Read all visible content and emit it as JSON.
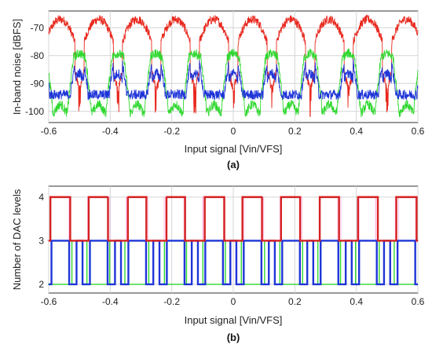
{
  "chart_data": [
    {
      "type": "line",
      "panel_label": "(a)",
      "xlabel": "Input signal [Vin/VFS]",
      "ylabel": "In-band noise [dBFS]",
      "xlim": [
        -0.6,
        0.6
      ],
      "ylim": [
        -104,
        -64
      ],
      "xticks": [
        "-0.6",
        "-0.4",
        "-0.2",
        "0",
        "0.2",
        "0.4",
        "0.6"
      ],
      "yticks": [
        "-70",
        "-80",
        "-90",
        "-100"
      ],
      "grid": true,
      "period": 0.125,
      "series": [
        {
          "color": "#e8281e",
          "peak_x": [
            -0.5625,
            -0.4375,
            -0.3125,
            -0.1875,
            -0.0625,
            0.0625,
            0.1875,
            0.3125,
            0.4375,
            0.5625
          ],
          "peak_y": -67,
          "trough_y": -92
        },
        {
          "color": "#2fd82f",
          "peak_x": [
            -0.5,
            -0.375,
            -0.25,
            -0.125,
            0.0,
            0.125,
            0.25,
            0.375,
            0.5
          ],
          "peak_y": -79,
          "trough_y": -101
        },
        {
          "color": "#1f35d8",
          "plateau_low_y": -94,
          "plateau_high_y": -84
        }
      ]
    },
    {
      "type": "line",
      "panel_label": "(b)",
      "xlabel": "Input signal [Vin/VFS]",
      "ylabel": "Number of DAC levels",
      "xlim": [
        -0.6,
        0.6
      ],
      "ylim": [
        1.8,
        4.25
      ],
      "xticks": [
        "-0.6",
        "-0.4",
        "-0.2",
        "0",
        "0.2",
        "0.4",
        "0.6"
      ],
      "yticks": [
        "4",
        "3",
        "2"
      ],
      "grid": true,
      "period": 0.125,
      "series": [
        {
          "color": "#d42020",
          "low": 3,
          "high": 4
        },
        {
          "color": "#2fd82f",
          "low": 2,
          "high": 3
        },
        {
          "color": "#1f35d8",
          "low": 2,
          "high": 3
        }
      ]
    }
  ]
}
